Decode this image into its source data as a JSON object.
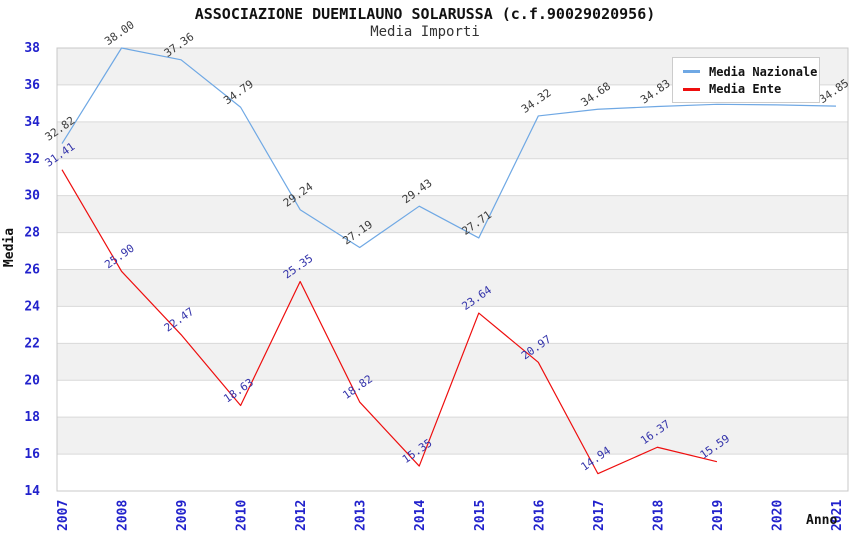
{
  "chart_data": {
    "type": "line",
    "title": "ASSOCIAZIONE DUEMILAUNO SOLARUSSA (c.f.90029020956)",
    "subtitle": "Media Importi",
    "xlabel": "Anno",
    "ylabel": "Media",
    "categories": [
      "2007",
      "2008",
      "2009",
      "2010",
      "2012",
      "2013",
      "2014",
      "2015",
      "2016",
      "2017",
      "2018",
      "2019",
      "2020",
      "2021"
    ],
    "ylim": [
      14,
      38
    ],
    "ytick_step": 2,
    "grid": true,
    "legend_position": "top-right",
    "band_color": "#f1f1f1",
    "grid_color": "#d9d9d9",
    "plot_border_color": "#c8c8c8",
    "axis_tick_color": "#2222cc",
    "series": [
      {
        "name": "Media Nazionale",
        "color": "#6fa8e4",
        "label_color": "#3a3a3a",
        "values": [
          32.82,
          38.0,
          37.36,
          34.79,
          29.24,
          27.19,
          29.43,
          27.71,
          34.32,
          34.68,
          34.83,
          34.95,
          34.92,
          34.85
        ],
        "labels": [
          "32.82",
          "38.00",
          "37.36",
          "34.79",
          "29.24",
          "27.19",
          "29.43",
          "27.71",
          "34.32",
          "34.68",
          "34.83",
          "",
          "",
          "34.85"
        ]
      },
      {
        "name": "Media Ente",
        "color": "#ee0e0e",
        "label_color": "#3333aa",
        "values": [
          31.41,
          25.9,
          22.47,
          18.63,
          25.35,
          18.82,
          15.35,
          23.64,
          20.97,
          14.94,
          16.37,
          15.59
        ],
        "labels": [
          "31.41",
          "25.90",
          "22.47",
          "18.63",
          "25.35",
          "18.82",
          "15.35",
          "23.64",
          "20.97",
          "14.94",
          "16.37",
          "15.59"
        ]
      }
    ]
  }
}
